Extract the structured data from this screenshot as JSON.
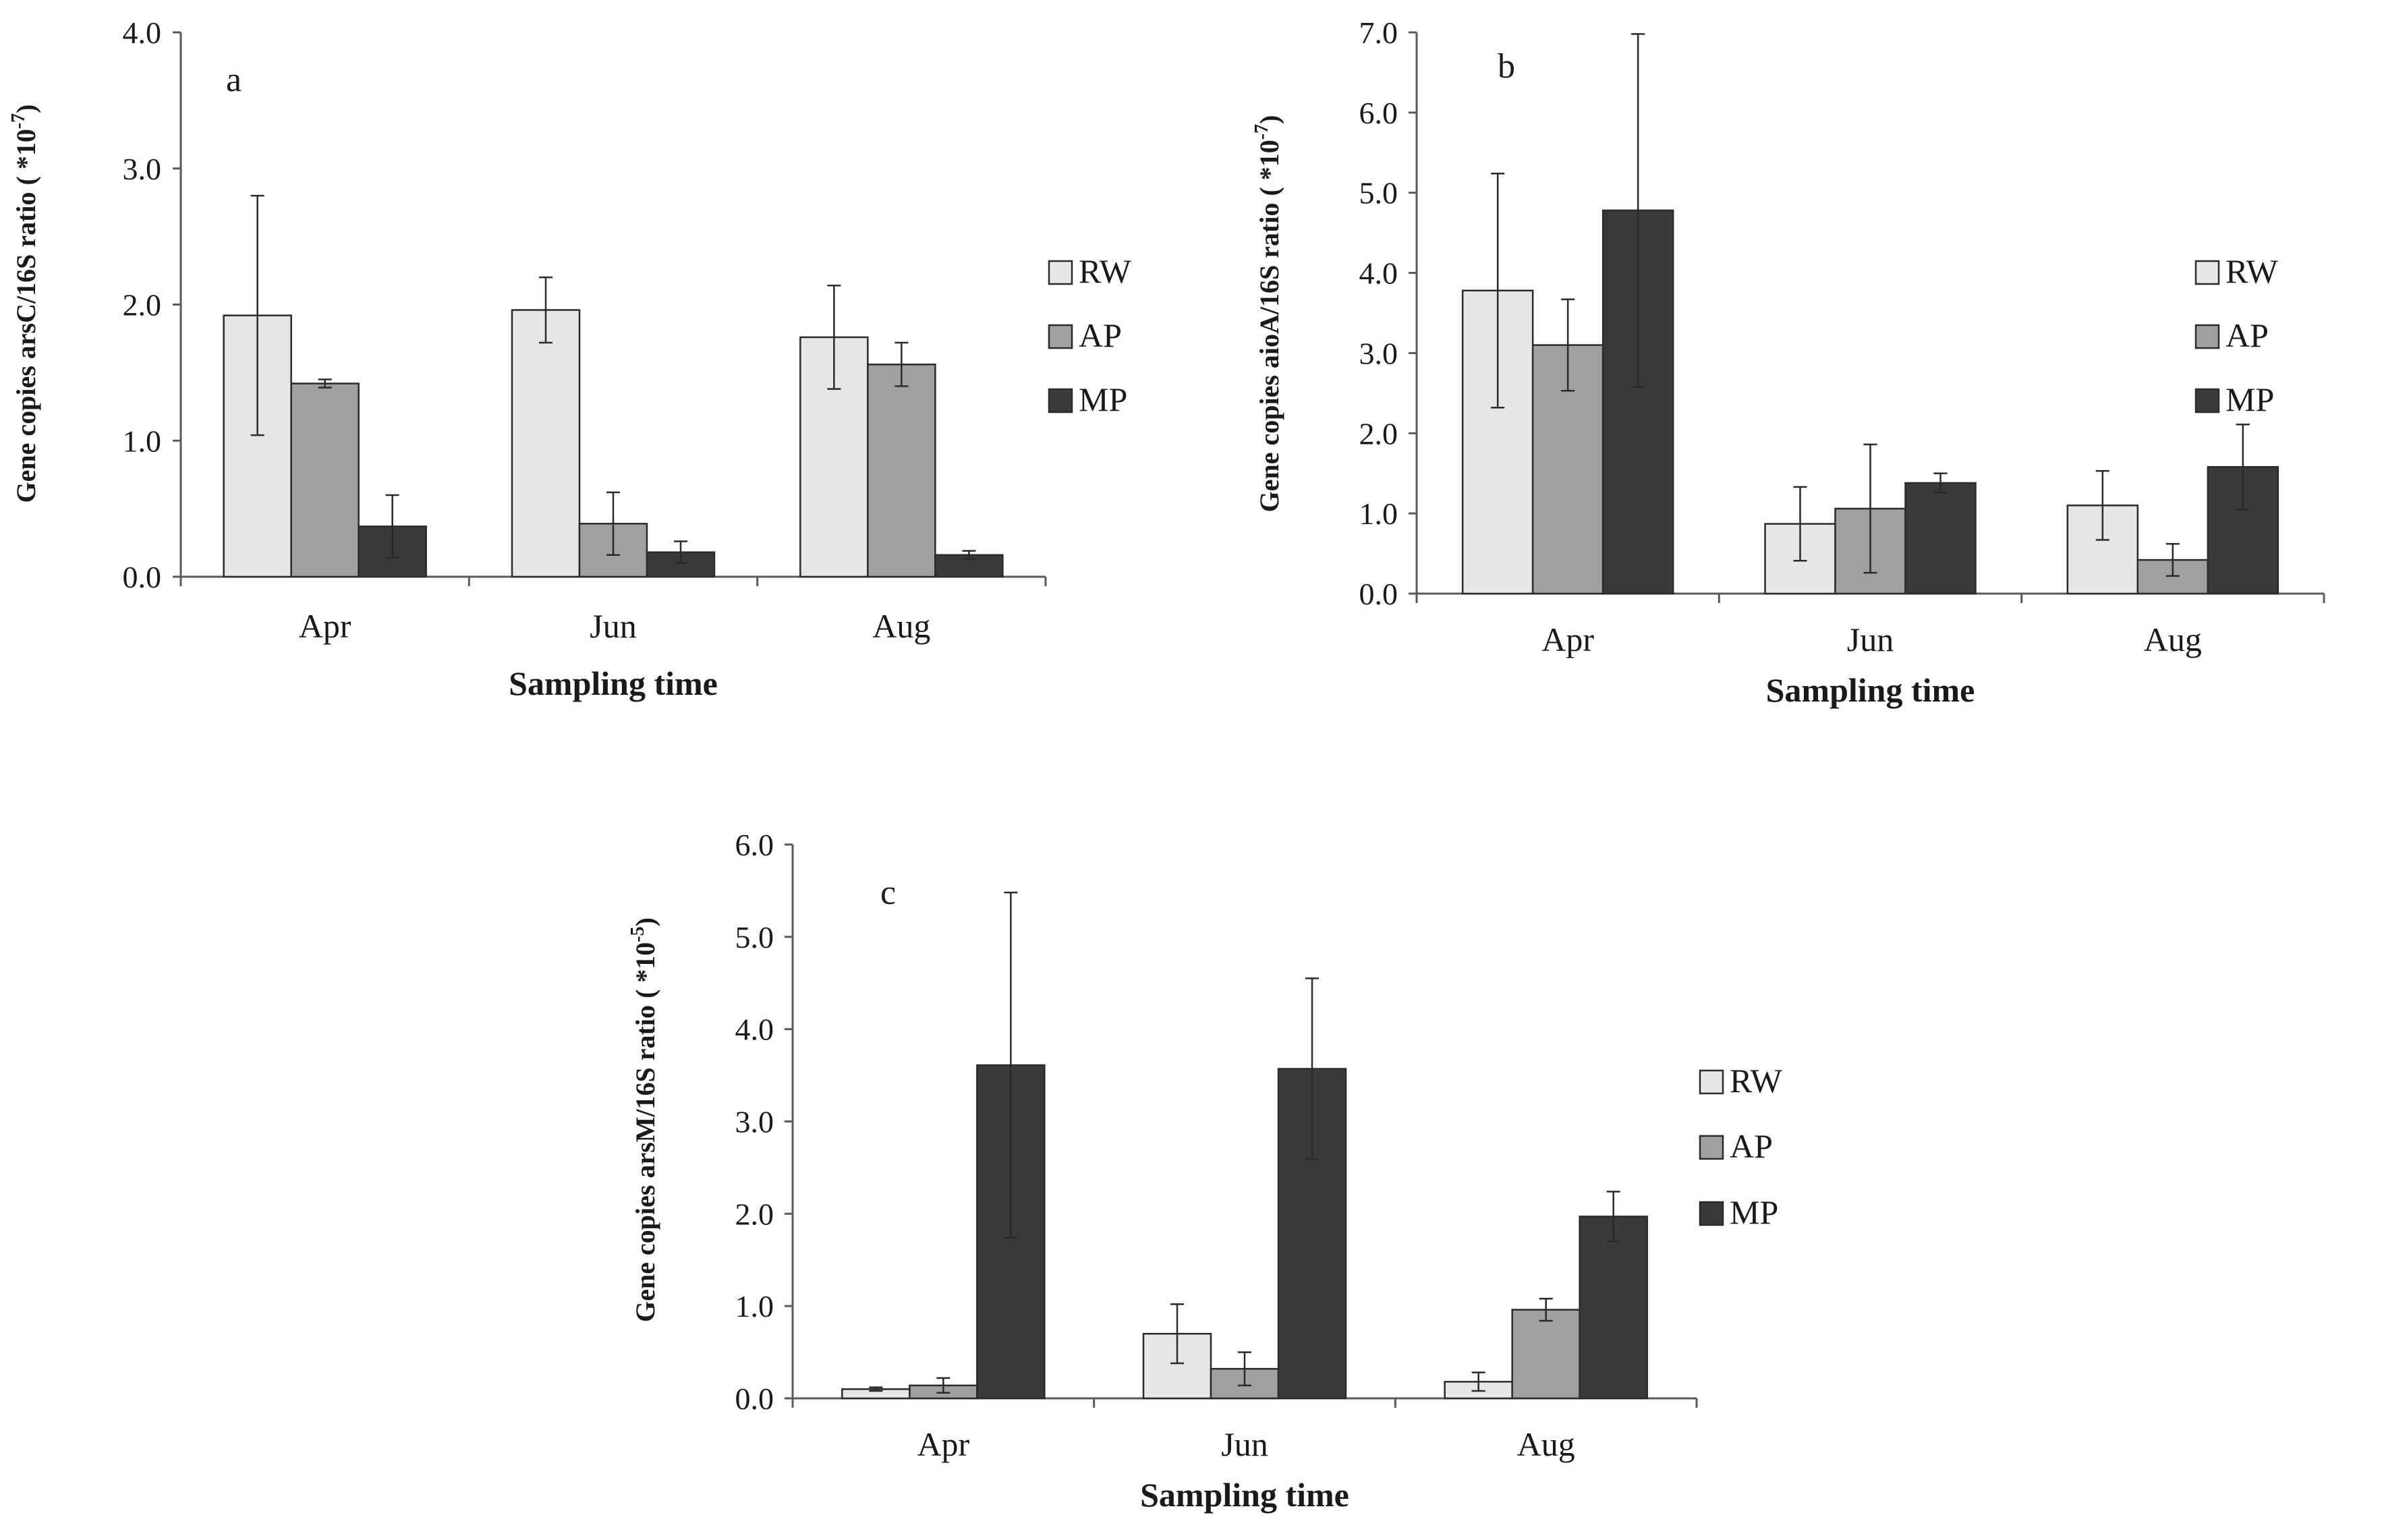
{
  "chart_data": [
    {
      "type": "bar",
      "panel_label": "a",
      "categories": [
        "Apr",
        "Jun",
        "Aug"
      ],
      "ylabel_prefix": "Gene copies arsC/16S ratio ( *10",
      "ylabel_exp": "-7",
      "ylabel_suffix": ")",
      "xlabel": "Sampling time",
      "ylim": [
        0,
        4
      ],
      "yticks": [
        "0.0",
        "1.0",
        "2.0",
        "3.0",
        "4.0"
      ],
      "legend_position": "right",
      "series": [
        {
          "name": "RW",
          "color": "#e6e6e6",
          "values": [
            1.92,
            1.96,
            1.76
          ],
          "errors": [
            0.88,
            0.24,
            0.38
          ]
        },
        {
          "name": "AP",
          "color": "#a0a0a0",
          "values": [
            1.42,
            0.39,
            1.56
          ],
          "errors": [
            0.03,
            0.23,
            0.16
          ]
        },
        {
          "name": "MP",
          "color": "#3a3a3a",
          "values": [
            0.37,
            0.18,
            0.16
          ],
          "errors": [
            0.23,
            0.08,
            0.03
          ]
        }
      ]
    },
    {
      "type": "bar",
      "panel_label": "b",
      "categories": [
        "Apr",
        "Jun",
        "Aug"
      ],
      "ylabel_prefix": "Gene copies aioA/16S ratio ( *10",
      "ylabel_exp": "-7",
      "ylabel_suffix": ")",
      "xlabel": "Sampling time",
      "ylim": [
        0,
        7
      ],
      "yticks": [
        "0.0",
        "1.0",
        "2.0",
        "3.0",
        "4.0",
        "5.0",
        "6.0",
        "7.0"
      ],
      "legend_position": "right",
      "series": [
        {
          "name": "RW",
          "color": "#e6e6e6",
          "values": [
            3.78,
            0.87,
            1.1
          ],
          "errors": [
            1.46,
            0.46,
            0.43
          ]
        },
        {
          "name": "AP",
          "color": "#a0a0a0",
          "values": [
            3.1,
            1.06,
            0.42
          ],
          "errors": [
            0.57,
            0.8,
            0.2
          ]
        },
        {
          "name": "MP",
          "color": "#3a3a3a",
          "values": [
            4.78,
            1.38,
            1.58
          ],
          "errors": [
            2.2,
            0.12,
            0.53
          ]
        }
      ]
    },
    {
      "type": "bar",
      "panel_label": "c",
      "categories": [
        "Apr",
        "Jun",
        "Aug"
      ],
      "ylabel_prefix": "Gene copies arsM/16S ratio ( *10",
      "ylabel_exp": "-5",
      "ylabel_suffix": ")",
      "xlabel": "Sampling time",
      "ylim": [
        0,
        6
      ],
      "yticks": [
        "0.0",
        "1.0",
        "2.0",
        "3.0",
        "4.0",
        "5.0",
        "6.0"
      ],
      "legend_position": "right",
      "series": [
        {
          "name": "RW",
          "color": "#e6e6e6",
          "values": [
            0.1,
            0.7,
            0.18
          ],
          "errors": [
            0.02,
            0.32,
            0.1
          ]
        },
        {
          "name": "AP",
          "color": "#a0a0a0",
          "values": [
            0.14,
            0.32,
            0.96
          ],
          "errors": [
            0.08,
            0.18,
            0.12
          ]
        },
        {
          "name": "MP",
          "color": "#3a3a3a",
          "values": [
            3.61,
            3.57,
            1.97
          ],
          "errors": [
            1.87,
            0.98,
            0.27
          ]
        }
      ]
    }
  ]
}
